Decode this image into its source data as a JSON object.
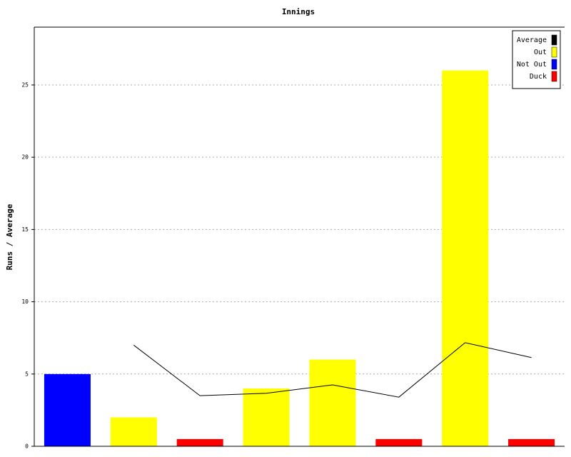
{
  "chart_data": {
    "type": "bar",
    "title": "Innings",
    "y_label": "Runs / Average",
    "categories": [
      null,
      null,
      null,
      null,
      null,
      null,
      null,
      null
    ],
    "series": [
      {
        "name": "Average",
        "color": "#000000",
        "type": "line",
        "values": [
          null,
          7,
          3.5,
          3.67,
          4.25,
          3.4,
          7.17,
          6.14
        ]
      },
      {
        "name": "Out",
        "color": "#ffff00",
        "values": [
          null,
          2,
          null,
          4,
          6,
          null,
          26,
          null
        ]
      },
      {
        "name": "Not Out",
        "color": "#0000ff",
        "values": [
          5,
          null,
          null,
          null,
          null,
          null,
          null,
          null
        ]
      },
      {
        "name": "Duck",
        "color": "#ff0000",
        "values": [
          null,
          null,
          0.5,
          null,
          null,
          0.5,
          null,
          0.5
        ]
      }
    ],
    "ylim": [
      0,
      29
    ],
    "yticks": [
      0,
      5,
      10,
      15,
      20,
      25
    ],
    "grid": true,
    "legend": "top-right"
  }
}
